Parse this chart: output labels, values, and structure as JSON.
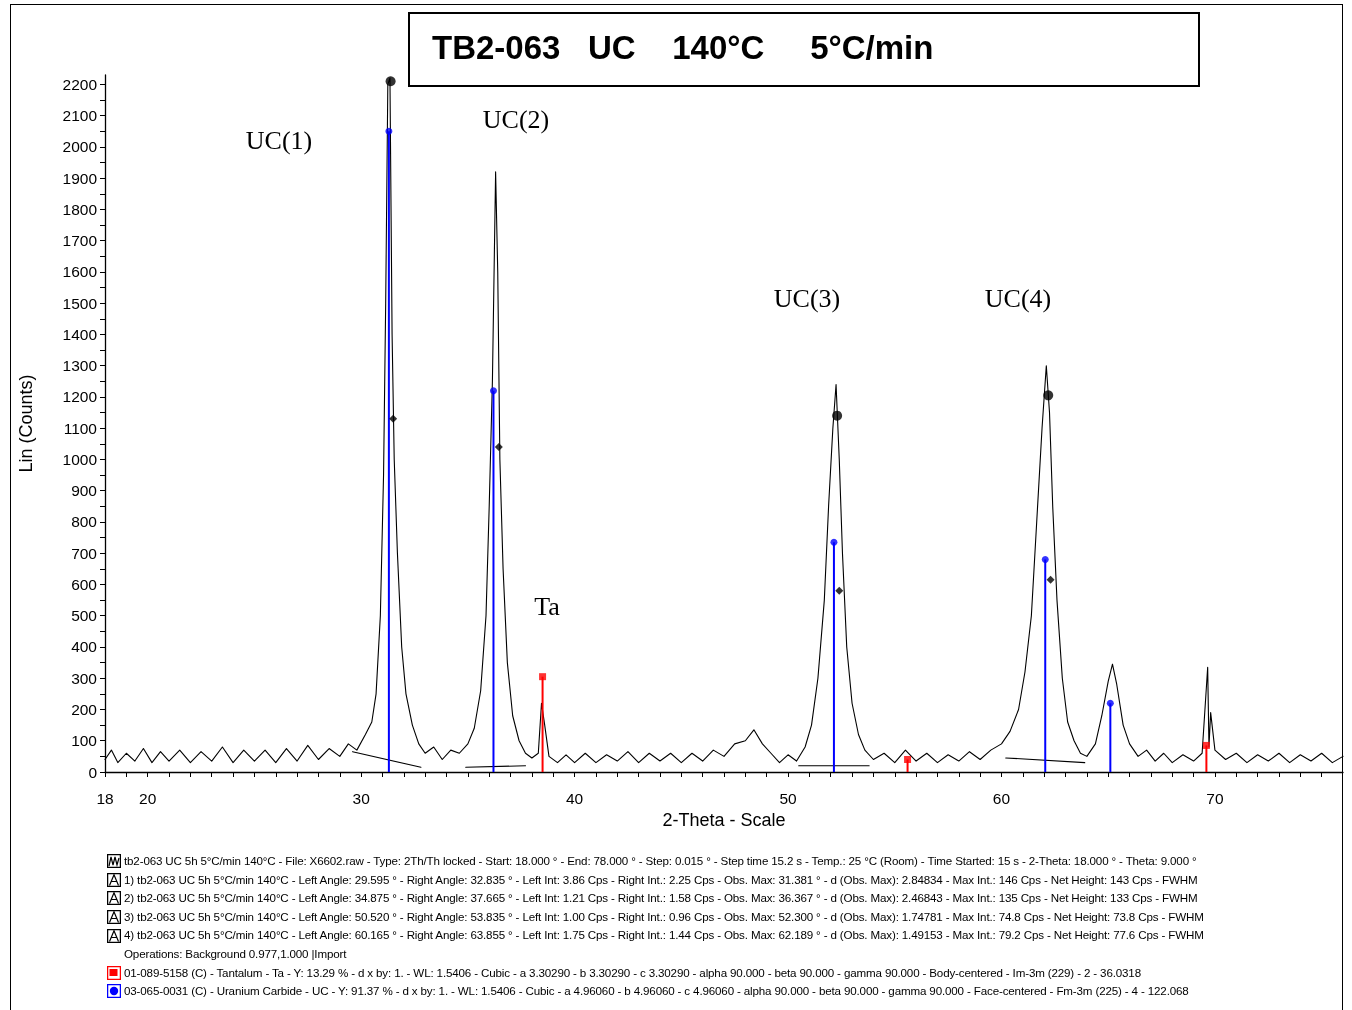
{
  "chart_data": {
    "type": "line",
    "title": "TB2-063   UC    140°C     5°C/min",
    "xlabel": "2-Theta - Scale",
    "ylabel": "Lin (Counts)",
    "xlim": [
      18,
      76
    ],
    "ylim": [
      0,
      2230
    ],
    "xticks": [
      18,
      {
        "value": 19,
        "label": null
      },
      20,
      {
        "value": 21,
        "label": null
      },
      {
        "value": 22,
        "label": null
      },
      {
        "value": 23,
        "label": null
      },
      {
        "value": 24,
        "label": null
      },
      {
        "value": 25,
        "label": null
      },
      {
        "value": 26,
        "label": null
      },
      {
        "value": 27,
        "label": null
      },
      {
        "value": 28,
        "label": null
      },
      {
        "value": 29,
        "label": null
      },
      30,
      {
        "value": 31,
        "label": null
      },
      {
        "value": 32,
        "label": null
      },
      {
        "value": 33,
        "label": null
      },
      {
        "value": 34,
        "label": null
      },
      {
        "value": 35,
        "label": null
      },
      {
        "value": 36,
        "label": null
      },
      {
        "value": 37,
        "label": null
      },
      {
        "value": 38,
        "label": null
      },
      {
        "value": 39,
        "label": null
      },
      40,
      {
        "value": 41,
        "label": null
      },
      {
        "value": 42,
        "label": null
      },
      {
        "value": 43,
        "label": null
      },
      {
        "value": 44,
        "label": null
      },
      {
        "value": 45,
        "label": null
      },
      {
        "value": 46,
        "label": null
      },
      {
        "value": 47,
        "label": null
      },
      {
        "value": 48,
        "label": null
      },
      {
        "value": 49,
        "label": null
      },
      50,
      {
        "value": 51,
        "label": null
      },
      {
        "value": 52,
        "label": null
      },
      {
        "value": 53,
        "label": null
      },
      {
        "value": 54,
        "label": null
      },
      {
        "value": 55,
        "label": null
      },
      {
        "value": 56,
        "label": null
      },
      {
        "value": 57,
        "label": null
      },
      {
        "value": 58,
        "label": null
      },
      {
        "value": 59,
        "label": null
      },
      60,
      {
        "value": 61,
        "label": null
      },
      {
        "value": 62,
        "label": null
      },
      {
        "value": 63,
        "label": null
      },
      {
        "value": 64,
        "label": null
      },
      {
        "value": 65,
        "label": null
      },
      {
        "value": 66,
        "label": null
      },
      {
        "value": 67,
        "label": null
      },
      {
        "value": 68,
        "label": null
      },
      {
        "value": 69,
        "label": null
      },
      70,
      {
        "value": 71,
        "label": null
      },
      {
        "value": 72,
        "label": null
      },
      {
        "value": 73,
        "label": null
      },
      {
        "value": 74,
        "label": null
      },
      {
        "value": 75,
        "label": null
      }
    ],
    "yticks": [
      0,
      {
        "value": 50,
        "label": null
      },
      100,
      {
        "value": 150,
        "label": null
      },
      200,
      {
        "value": 250,
        "label": null
      },
      300,
      {
        "value": 350,
        "label": null
      },
      400,
      {
        "value": 450,
        "label": null
      },
      500,
      {
        "value": 550,
        "label": null
      },
      600,
      {
        "value": 650,
        "label": null
      },
      700,
      {
        "value": 750,
        "label": null
      },
      800,
      {
        "value": 850,
        "label": null
      },
      900,
      {
        "value": 950,
        "label": null
      },
      1000,
      {
        "value": 1050,
        "label": null
      },
      1100,
      {
        "value": 1150,
        "label": null
      },
      1200,
      {
        "value": 1250,
        "label": null
      },
      1300,
      {
        "value": 1350,
        "label": null
      },
      1400,
      {
        "value": 1450,
        "label": null
      },
      1500,
      {
        "value": 1550,
        "label": null
      },
      1600,
      {
        "value": 1650,
        "label": null
      },
      1700,
      {
        "value": 1750,
        "label": null
      },
      1800,
      {
        "value": 1850,
        "label": null
      },
      1900,
      {
        "value": 1950,
        "label": null
      },
      2000,
      {
        "value": 2050,
        "label": null
      },
      2100,
      {
        "value": 2150,
        "label": null
      },
      2200
    ],
    "grid": false,
    "legend": "bottom",
    "line_style": "solid",
    "series": [
      {
        "type": "line",
        "name": "tb2-063 UC 5h 5°C/min 140°C - File: X6602.raw - Type: 2Th/Th locked - Start: 18.000 ° - End: 78.000 ° - Step: 0.015 ° - Step  time 15.2 s - Temp.: 25 °C (Room) - Time Started: 15 s - 2-Theta: 18.000 ° - Theta: 9.000 °",
        "color": "#000000",
        "marker": "none",
        "x": [
          18,
          18.3,
          18.6,
          19,
          19.4,
          19.8,
          20.2,
          20.6,
          21,
          21.5,
          22,
          22.5,
          23,
          23.5,
          24,
          24.5,
          25,
          25.5,
          26,
          26.5,
          27,
          27.5,
          28,
          28.5,
          29,
          29.4,
          29.8,
          30.2,
          30.5,
          30.7,
          30.9,
          31.05,
          31.15,
          31.25,
          31.35,
          31.45,
          31.55,
          31.7,
          31.9,
          32.1,
          32.4,
          32.7,
          33,
          33.4,
          33.8,
          34.2,
          34.6,
          35,
          35.3,
          35.6,
          35.85,
          36,
          36.15,
          36.3,
          36.4,
          36.5,
          36.65,
          36.85,
          37.1,
          37.4,
          37.7,
          38,
          38.3,
          38.45,
          38.6,
          38.8,
          39.2,
          39.6,
          40,
          40.5,
          41,
          41.5,
          42,
          42.5,
          43,
          43.5,
          44,
          44.5,
          45,
          45.5,
          46,
          46.5,
          47,
          47.5,
          48,
          48.4,
          48.8,
          49.2,
          49.6,
          50,
          50.4,
          50.8,
          51.1,
          51.4,
          51.7,
          51.9,
          52.1,
          52.25,
          52.4,
          52.55,
          52.75,
          53,
          53.3,
          53.6,
          54,
          54.5,
          55,
          55.5,
          56,
          56.5,
          57,
          57.5,
          58,
          58.5,
          59,
          59.5,
          60,
          60.4,
          60.8,
          61.1,
          61.4,
          61.65,
          61.9,
          62.1,
          62.25,
          62.4,
          62.6,
          62.85,
          63.1,
          63.4,
          63.7,
          64,
          64.4,
          64.7,
          65,
          65.2,
          65.4,
          65.7,
          66,
          66.4,
          66.8,
          67.2,
          67.6,
          68,
          68.5,
          69,
          69.4,
          69.66,
          69.72,
          69.8,
          70,
          70.5,
          71,
          71.5,
          72,
          72.5,
          73,
          73.5,
          74,
          74.5,
          75,
          75.5,
          76
        ],
        "values": [
          40,
          70,
          30,
          60,
          35,
          75,
          30,
          65,
          35,
          70,
          30,
          65,
          35,
          80,
          30,
          70,
          35,
          70,
          30,
          75,
          35,
          85,
          40,
          75,
          50,
          90,
          70,
          120,
          160,
          250,
          500,
          950,
          1500,
          2200,
          2220,
          1400,
          1000,
          700,
          400,
          250,
          150,
          90,
          60,
          80,
          40,
          70,
          60,
          90,
          140,
          260,
          500,
          850,
          1250,
          1920,
          1600,
          1000,
          650,
          350,
          180,
          100,
          60,
          45,
          60,
          220,
          150,
          50,
          30,
          55,
          30,
          60,
          30,
          55,
          35,
          65,
          30,
          60,
          35,
          60,
          30,
          60,
          35,
          70,
          50,
          90,
          100,
          135,
          90,
          60,
          30,
          55,
          35,
          80,
          150,
          300,
          550,
          850,
          1100,
          1240,
          1000,
          700,
          400,
          220,
          120,
          70,
          40,
          60,
          30,
          70,
          35,
          60,
          30,
          55,
          35,
          65,
          40,
          70,
          90,
          130,
          200,
          320,
          500,
          800,
          1100,
          1300,
          1150,
          850,
          550,
          300,
          160,
          100,
          60,
          50,
          90,
          180,
          290,
          345,
          280,
          150,
          90,
          50,
          70,
          35,
          60,
          30,
          55,
          35,
          60,
          335,
          80,
          190,
          70,
          40,
          60,
          30,
          55,
          35,
          60,
          30,
          55,
          35,
          60,
          30,
          50
        ]
      },
      {
        "type": "line",
        "color": "#000000",
        "marker": "none",
        "x": [
          29.6,
          32.8
        ],
        "values": [
          65,
          15
        ]
      },
      {
        "type": "line",
        "color": "#000000",
        "marker": "none",
        "x": [
          34.9,
          37.7
        ],
        "values": [
          15,
          20
        ]
      },
      {
        "type": "line",
        "color": "#000000",
        "marker": "none",
        "x": [
          50.5,
          53.8
        ],
        "values": [
          20,
          20
        ]
      },
      {
        "type": "line",
        "color": "#000000",
        "marker": "none",
        "x": [
          60.2,
          63.9
        ],
        "values": [
          45,
          30
        ]
      },
      {
        "type": "scatter",
        "color": "#000000",
        "marker": "circle",
        "x": [
          31.38,
          52.3,
          62.19
        ],
        "values": [
          2210,
          1140,
          1205
        ]
      },
      {
        "type": "scatter",
        "color": "#000000",
        "marker": "diamond",
        "x": [
          31.5,
          36.45,
          52.4,
          62.3
        ],
        "values": [
          1130,
          1040,
          580,
          615
        ]
      },
      {
        "type": "lollipop",
        "name": "01-089-5158 (C) - Tantalum - Ta - Y: 13.29 % - d x by: 1. - WL: 1.5406 - Cubic - a 3.30290 - b 3.30290 - c 3.30290 - alpha 90.000 - beta 90.000 - gamma 90.000 - Body-centered - Im-3m (229) - 2 - 36.0318",
        "color": "#ff0000",
        "marker": "square",
        "x": [
          38.5,
          55.6,
          69.6
        ],
        "values": [
          305,
          40,
          85
        ]
      },
      {
        "type": "lollipop",
        "name": "03-065-0031 (C) - Uranium Carbide - UC - Y: 91.37 % - d x by: 1. - WL: 1.5406 - Cubic - a 4.96060 - b 4.96060 - c 4.96060 - alpha 90.000 - beta 90.000 - gamma 90.000 - Face-centered - Fm-3m (225) - 4 - 122.068",
        "color": "#0000ff",
        "marker": "circle",
        "x": [
          31.3,
          36.2,
          52.15,
          62.05,
          65.1
        ],
        "values": [
          2050,
          1220,
          735,
          680,
          220
        ]
      }
    ],
    "annotations": [
      "UC(1)",
      "UC(2)",
      "UC(3)",
      "UC(4)",
      "Ta",
      "1)   tb2-063 UC 5h 5°C/min 140°C - Left Angle: 29.595 ° - Right Angle: 32.835 ° - Left  Int: 3.86 Cps - Right Int.: 2.25 Cps - Obs. Max: 31.381 ° - d (Obs. Max): 2.84834 - Max Int.: 146 Cps - Net Height: 143 Cps - FWHM",
      "2)   tb2-063 UC 5h 5°C/min 140°C - Left Angle: 34.875 ° - Right Angle: 37.665 ° - Left  Int: 1.21 Cps - Right Int.: 1.58 Cps - Obs. Max: 36.367 ° - d (Obs. Max): 2.46843 - Max Int.: 135 Cps - Net Height: 133 Cps - FWHM",
      "3)   tb2-063 UC 5h 5°C/min 140°C - Left Angle: 50.520 ° - Right Angle: 53.835 ° - Left  Int: 1.00 Cps - Right Int.: 0.96 Cps - Obs. Max: 52.300 ° - d (Obs. Max): 1.74781 - Max Int.: 74.8 Cps - Net Height: 73.8 Cps - FWHM",
      "4)   tb2-063 UC 5h 5°C/min 140°C - Left Angle: 60.165 ° - Right Angle: 63.855 ° - Left  Int: 1.75 Cps - Right Int.: 1.44 Cps - Obs. Max: 62.189 ° - d (Obs. Max): 1.49153 - Max Int.: 79.2 Cps - Net Height: 77.6 Cps - FWHM",
      "Operations: Background 0.977,1.000 |Import"
    ]
  }
}
